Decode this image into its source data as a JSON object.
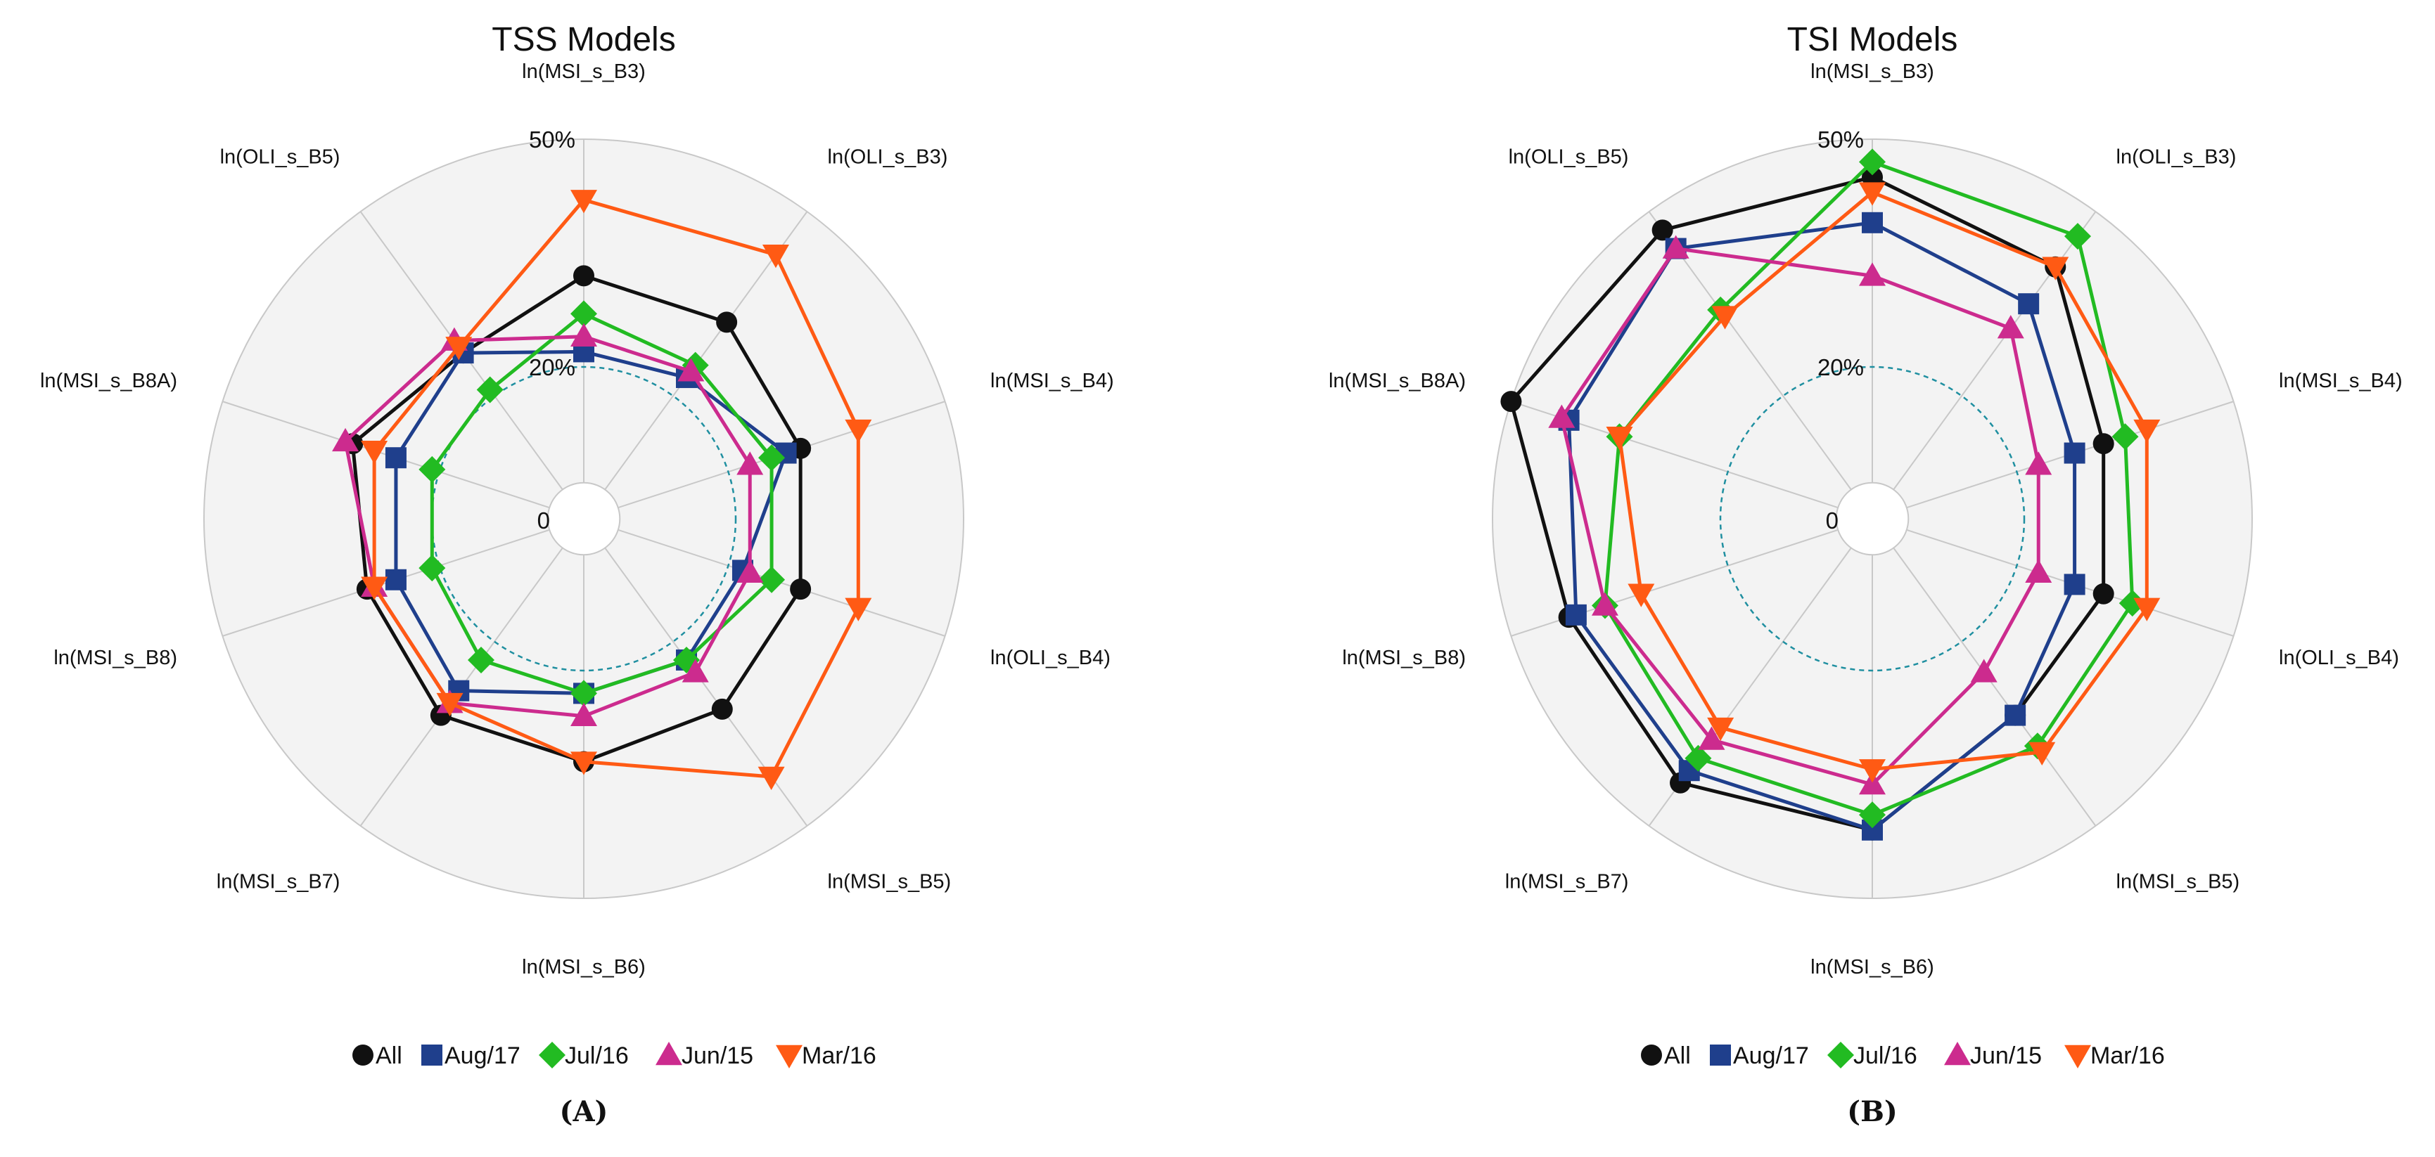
{
  "chart_data": [
    {
      "type": "radar",
      "title": "TSS Models",
      "panel_label": "(A)",
      "axes": [
        "ln(MSI_s_B3)",
        "ln(OLI_s_B3)",
        "ln(MSI_s_B4)",
        "ln(OLI_s_B4)",
        "ln(MSI_s_B5)",
        "ln(MSI_s_B6)",
        "ln(MSI_s_B7)",
        "ln(MSI_s_B8)",
        "ln(MSI_s_B8A)",
        "ln(OLI_s_B5)"
      ],
      "rlim": [
        0,
        50
      ],
      "ticks": [
        {
          "value": 0,
          "label": "0"
        },
        {
          "value": 20,
          "label": "20%"
        },
        {
          "value": 50,
          "label": "50%"
        }
      ],
      "reference_ring": 20,
      "series": [
        {
          "name": "All",
          "values": [
            32,
            32,
            30,
            30,
            31,
            32,
            32,
            30,
            32,
            27
          ]
        },
        {
          "name": "Aug/17",
          "values": [
            22,
            23,
            28,
            22,
            23,
            23,
            28,
            26,
            26,
            27
          ]
        },
        {
          "name": "Jul/16",
          "values": [
            27,
            25,
            26,
            26,
            23,
            23,
            23,
            21,
            21,
            21
          ]
        },
        {
          "name": "Jun/15",
          "values": [
            24,
            24,
            23,
            23,
            25,
            26,
            30,
            29,
            33,
            29
          ]
        },
        {
          "name": "Mar/16",
          "values": [
            42,
            43,
            38,
            38,
            42,
            32,
            30,
            29,
            29,
            28
          ]
        }
      ]
    },
    {
      "type": "radar",
      "title": "TSI Models",
      "panel_label": "(B)",
      "axes": [
        "ln(MSI_s_B3)",
        "ln(OLI_s_B3)",
        "ln(MSI_s_B4)",
        "ln(OLI_s_B4)",
        "ln(MSI_s_B5)",
        "ln(MSI_s_B6)",
        "ln(MSI_s_B7)",
        "ln(MSI_s_B8)",
        "ln(MSI_s_B8A)",
        "ln(OLI_s_B5)"
      ],
      "rlim": [
        0,
        50
      ],
      "ticks": [
        {
          "value": 0,
          "label": "0"
        },
        {
          "value": 20,
          "label": "20%"
        },
        {
          "value": 50,
          "label": "50%"
        }
      ],
      "reference_ring": 20,
      "series": [
        {
          "name": "All",
          "values": [
            45,
            41,
            32,
            32,
            32,
            41,
            43,
            42,
            50,
            47
          ]
        },
        {
          "name": "Aug/17",
          "values": [
            39,
            35,
            28,
            28,
            32,
            41,
            41,
            41,
            42,
            44
          ]
        },
        {
          "name": "Jul/16",
          "values": [
            47,
            46,
            35,
            36,
            37,
            39,
            39,
            37,
            35,
            34
          ]
        },
        {
          "name": "Jun/15",
          "values": [
            32,
            31,
            23,
            23,
            25,
            35,
            36,
            37,
            43,
            44
          ]
        },
        {
          "name": "Mar/16",
          "values": [
            43,
            41,
            38,
            38,
            38,
            33,
            34,
            32,
            35,
            33
          ]
        }
      ]
    }
  ],
  "legend": [
    {
      "name": "All",
      "color": "#111111",
      "marker": "circle"
    },
    {
      "name": "Aug/17",
      "color": "#1f3f8c",
      "marker": "square"
    },
    {
      "name": "Jul/16",
      "color": "#22bb22",
      "marker": "diamond"
    },
    {
      "name": "Jun/15",
      "color": "#cc2b8e",
      "marker": "triangle-up"
    },
    {
      "name": "Mar/16",
      "color": "#ff5a14",
      "marker": "triangle-down"
    }
  ],
  "colors": {
    "plot_background": "#f3f3f3",
    "spoke": "#c8c8c8",
    "reference_ring": "#1f8fa0"
  }
}
